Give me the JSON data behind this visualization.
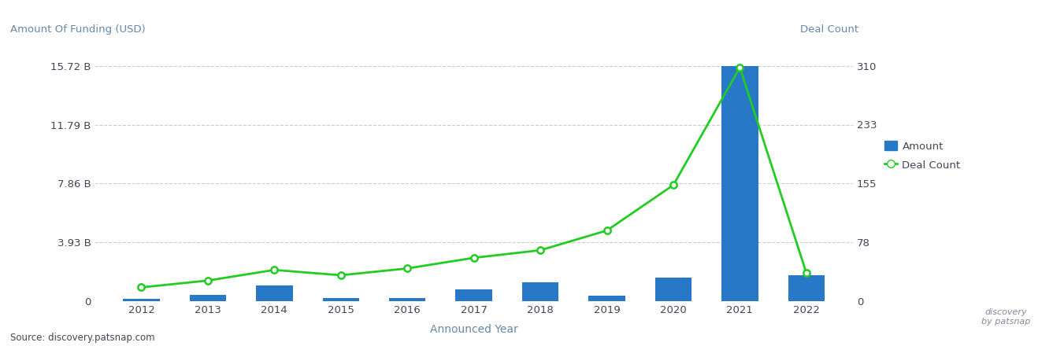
{
  "years": [
    2012,
    2013,
    2014,
    2015,
    2016,
    2017,
    2018,
    2019,
    2020,
    2021,
    2022
  ],
  "funding_usd": [
    0.15,
    0.42,
    1.05,
    0.18,
    0.18,
    0.78,
    1.25,
    0.38,
    1.55,
    15.72,
    1.7
  ],
  "deal_count": [
    18,
    27,
    41,
    34,
    43,
    57,
    67,
    93,
    153,
    308,
    37
  ],
  "bar_color": "#2878C8",
  "line_color": "#22CC22",
  "left_yticks_labels": [
    "0",
    "3.93 B",
    "7.86 B",
    "11.79 B",
    "15.72 B"
  ],
  "left_yticks_values": [
    0,
    3.93,
    7.86,
    11.79,
    15.72
  ],
  "right_yticks_labels": [
    "0",
    "78",
    "155",
    "233",
    "310"
  ],
  "right_yticks_values": [
    0,
    78,
    155,
    233,
    310
  ],
  "left_ylabel": "Amount Of Funding (USD)",
  "right_ylabel": "Deal Count",
  "xlabel": "Announced Year",
  "source_text": "Source: discovery.patsnap.com",
  "legend_amount_label": "Amount",
  "legend_deal_label": "Deal Count",
  "bg_color": "#ffffff",
  "grid_color": "#cccccc",
  "axis_label_color": "#6688aa",
  "tick_label_color": "#444455"
}
